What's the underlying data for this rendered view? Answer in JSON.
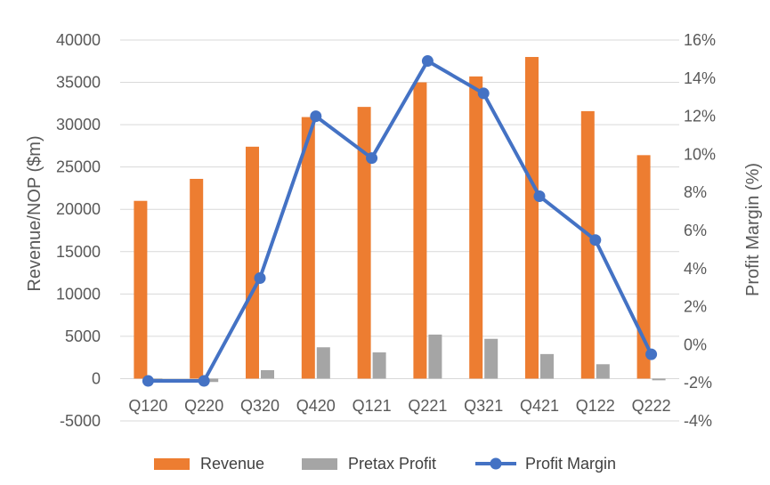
{
  "chart_data": {
    "type": "bar",
    "categories": [
      "Q120",
      "Q220",
      "Q320",
      "Q420",
      "Q121",
      "Q221",
      "Q321",
      "Q421",
      "Q122",
      "Q222"
    ],
    "series": [
      {
        "name": "Revenue",
        "type": "bar",
        "axis": "left",
        "color": "#ED7D31",
        "values": [
          21000,
          23600,
          27400,
          30900,
          32100,
          35000,
          35700,
          38000,
          31600,
          26400
        ]
      },
      {
        "name": "Pretax Profit",
        "type": "bar",
        "axis": "left",
        "color": "#A5A5A5",
        "values": [
          -400,
          -400,
          1000,
          3700,
          3100,
          5200,
          4700,
          2900,
          1700,
          -200
        ]
      },
      {
        "name": "Profit Margin",
        "type": "line",
        "axis": "right",
        "color": "#4472C4",
        "marker": "circle",
        "values": [
          -1.9,
          -1.9,
          3.5,
          12.0,
          9.8,
          14.9,
          13.2,
          7.8,
          5.5,
          -0.5
        ]
      }
    ],
    "ylabel": "Revenue/NOP ($m)",
    "y2label": "Profit Margin (%)",
    "ylim": [
      -5000,
      40000
    ],
    "y2lim": [
      -4,
      16
    ],
    "yticks": [
      "40000",
      "35000",
      "30000",
      "25000",
      "20000",
      "15000",
      "10000",
      "5000",
      "0",
      "-5000"
    ],
    "y2ticks": [
      "16%",
      "14%",
      "12%",
      "10%",
      "8%",
      "6%",
      "4%",
      "2%",
      "0%",
      "-2%",
      "-4%"
    ],
    "grid": true,
    "legend_position": "bottom"
  }
}
